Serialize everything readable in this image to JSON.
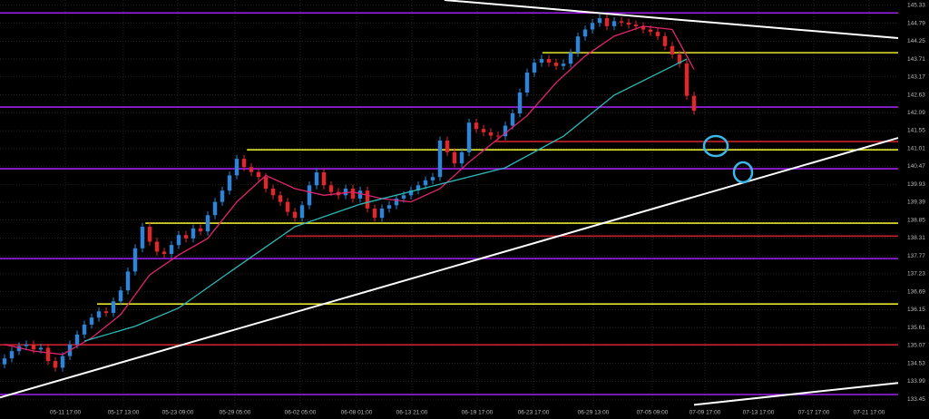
{
  "chart_data": {
    "type": "candlestick",
    "xlim": [
      -0.625,
      123.125
    ],
    "ylim": [
      133.18,
      145.49
    ],
    "grid": true,
    "xticks": [
      {
        "value": 8.375,
        "label": "05-11 17:00"
      },
      {
        "value": 16.375,
        "label": "05-17 13:00"
      },
      {
        "value": 23.875,
        "label": "05-23 09:00"
      },
      {
        "value": 31.75,
        "label": "05-29 05:00"
      },
      {
        "value": 40.75,
        "label": "06-02 05:00"
      },
      {
        "value": 48.5,
        "label": "06-08 01:00"
      },
      {
        "value": 56.125,
        "label": "06-13 21:00"
      },
      {
        "value": 65.125,
        "label": "06-19 17:00"
      },
      {
        "value": 72.875,
        "label": "06-23 17:00"
      },
      {
        "value": 81.125,
        "label": "06-29 13:00"
      },
      {
        "value": 89.25,
        "label": "07-05 09:00"
      },
      {
        "value": 96.5,
        "label": "07-09 17:00"
      },
      {
        "value": 103.875,
        "label": "07-13 17:00"
      },
      {
        "value": 111.5,
        "label": "07-17 17:00"
      },
      {
        "value": 119.125,
        "label": "07-21 17:00"
      }
    ],
    "yticks": [
      145.33,
      144.79,
      144.25,
      143.71,
      143.17,
      142.63,
      142.09,
      141.55,
      141.01,
      140.47,
      139.93,
      139.39,
      138.85,
      138.31,
      137.77,
      137.23,
      136.69,
      136.15,
      135.61,
      135.07,
      134.53,
      133.99,
      133.45
    ],
    "up_color": "#2b86d9",
    "down_color": "#e3262d",
    "open": [
      134.5,
      134.68,
      134.9,
      135.05,
      135.1,
      134.95,
      135.0,
      134.6,
      134.4,
      134.75,
      135.1,
      135.4,
      135.7,
      135.91,
      136.1,
      136.05,
      136.4,
      136.73,
      137.3,
      138.0,
      138.65,
      138.2,
      137.9,
      137.83,
      138.1,
      138.4,
      138.3,
      138.6,
      138.51,
      139.0,
      139.4,
      139.74,
      140.2,
      140.7,
      140.45,
      140.3,
      140.15,
      139.8,
      139.6,
      139.4,
      139.1,
      138.92,
      139.3,
      139.9,
      140.29,
      139.9,
      139.7,
      139.6,
      139.8,
      139.5,
      139.74,
      139.2,
      138.92,
      139.2,
      139.3,
      139.5,
      139.6,
      139.75,
      139.9,
      140.05,
      140.15,
      141.25,
      140.9,
      140.56,
      140.9,
      141.79,
      141.6,
      141.5,
      141.4,
      141.38,
      141.7,
      142.07,
      142.7,
      143.3,
      143.6,
      143.71,
      143.6,
      143.5,
      143.57,
      143.9,
      144.39,
      144.6,
      144.8,
      144.94,
      144.7,
      144.85,
      144.81,
      144.75,
      144.7,
      144.6,
      144.53,
      144.4,
      144.1,
      143.85,
      143.57,
      142.6
    ],
    "high": [
      134.8,
      135.02,
      135.17,
      135.22,
      135.22,
      135.12,
      135.12,
      134.72,
      134.87,
      135.22,
      135.52,
      135.82,
      136.03,
      136.22,
      136.22,
      136.52,
      136.85,
      137.42,
      138.12,
      138.77,
      138.77,
      138.32,
      138.02,
      138.22,
      138.52,
      138.52,
      138.72,
      138.72,
      139.12,
      139.52,
      139.86,
      140.32,
      140.82,
      140.82,
      140.57,
      140.42,
      140.27,
      139.92,
      139.72,
      139.52,
      139.22,
      139.42,
      140.02,
      140.41,
      140.41,
      140.02,
      139.82,
      139.92,
      139.92,
      139.86,
      139.86,
      139.32,
      139.32,
      139.42,
      139.62,
      139.72,
      139.87,
      140.02,
      140.17,
      140.27,
      141.37,
      141.37,
      141.02,
      141.02,
      141.91,
      141.91,
      141.72,
      141.62,
      141.52,
      141.82,
      142.19,
      142.82,
      143.42,
      143.72,
      143.83,
      143.83,
      143.72,
      143.69,
      144.02,
      144.51,
      144.72,
      144.92,
      145.06,
      145.06,
      144.97,
      144.97,
      144.93,
      144.87,
      144.82,
      144.72,
      144.65,
      144.52,
      144.22,
      143.97,
      143.69,
      142.72
    ],
    "low": [
      134.38,
      134.56,
      134.78,
      134.93,
      134.83,
      134.83,
      134.48,
      134.28,
      134.28,
      134.63,
      134.98,
      135.28,
      135.58,
      135.79,
      135.93,
      135.93,
      136.28,
      136.61,
      137.18,
      137.88,
      138.08,
      137.78,
      137.71,
      137.71,
      137.98,
      138.18,
      138.18,
      138.39,
      138.39,
      138.88,
      139.28,
      139.62,
      140.08,
      140.33,
      140.18,
      140.03,
      139.68,
      139.48,
      139.28,
      138.98,
      138.8,
      138.8,
      139.18,
      139.78,
      139.78,
      139.58,
      139.48,
      139.48,
      139.38,
      139.38,
      139.08,
      138.8,
      138.8,
      139.08,
      139.18,
      139.38,
      139.48,
      139.63,
      139.78,
      139.93,
      140.03,
      140.78,
      140.44,
      140.44,
      140.78,
      141.48,
      141.38,
      141.28,
      141.26,
      141.26,
      141.58,
      141.95,
      142.58,
      143.18,
      143.48,
      143.48,
      143.38,
      143.38,
      143.45,
      143.78,
      144.27,
      144.48,
      144.68,
      144.58,
      144.58,
      144.69,
      144.63,
      144.58,
      144.48,
      144.41,
      144.28,
      143.98,
      143.73,
      143.45,
      142.48,
      142.03
    ],
    "close": [
      134.68,
      134.9,
      135.05,
      135.1,
      134.95,
      135.0,
      134.6,
      134.4,
      134.75,
      135.1,
      135.4,
      135.7,
      135.91,
      136.1,
      136.05,
      136.4,
      136.73,
      137.3,
      138.0,
      138.65,
      138.2,
      137.9,
      137.83,
      138.1,
      138.4,
      138.3,
      138.6,
      138.51,
      139.0,
      139.4,
      139.74,
      140.2,
      140.7,
      140.45,
      140.3,
      140.15,
      139.8,
      139.6,
      139.4,
      139.1,
      138.92,
      139.3,
      139.9,
      140.29,
      139.9,
      139.7,
      139.6,
      139.8,
      139.5,
      139.74,
      139.2,
      138.92,
      139.2,
      139.3,
      139.5,
      139.6,
      139.75,
      139.9,
      140.05,
      140.15,
      141.25,
      140.9,
      140.56,
      140.9,
      141.79,
      141.6,
      141.5,
      141.4,
      141.38,
      141.7,
      142.07,
      142.7,
      143.3,
      143.6,
      143.71,
      143.6,
      143.5,
      143.57,
      143.9,
      144.39,
      144.6,
      144.8,
      144.94,
      144.7,
      144.85,
      144.81,
      144.75,
      144.7,
      144.6,
      144.53,
      144.4,
      144.1,
      143.85,
      143.57,
      142.6,
      142.15
    ],
    "series": [
      {
        "color": "#e0246e",
        "x": [
          0,
          4,
          8,
          12,
          16,
          20,
          24,
          28,
          32,
          36,
          40,
          44,
          48,
          52,
          56,
          60,
          64,
          68,
          72,
          76,
          80,
          84,
          88,
          92,
          95
        ],
        "values": [
          135.1,
          134.9,
          134.8,
          135.3,
          136.0,
          137.2,
          137.8,
          138.3,
          139.4,
          140.2,
          139.8,
          139.6,
          139.7,
          139.5,
          139.4,
          139.8,
          140.6,
          141.3,
          142.0,
          143.0,
          143.8,
          144.4,
          144.7,
          144.6,
          143.4
        ]
      },
      {
        "color": "#2fb8b8",
        "x": [
          11,
          18,
          24,
          31,
          40,
          49,
          59,
          69,
          77,
          84,
          94
        ],
        "values": [
          135.2,
          135.65,
          136.2,
          137.28,
          138.65,
          139.33,
          139.88,
          140.43,
          141.38,
          142.62,
          143.71
        ]
      }
    ],
    "levels": [
      {
        "color": "#a020f0",
        "value": 145.1,
        "start": -0.625
      },
      {
        "color": "#a020f0",
        "value": 142.26,
        "start": -0.625
      },
      {
        "color": "#a020f0",
        "value": 140.4,
        "start": -0.625
      },
      {
        "color": "#a020f0",
        "value": 137.69,
        "start": -0.625
      },
      {
        "color": "#a020f0",
        "value": 133.59,
        "start": -0.625
      },
      {
        "color": "#e6e62e",
        "value": 143.9,
        "start": 74.1
      },
      {
        "color": "#e6e62e",
        "value": 140.97,
        "start": 33.4
      },
      {
        "color": "#e6e62e",
        "value": 138.76,
        "start": 19.4
      },
      {
        "color": "#e6e62e",
        "value": 136.32,
        "start": 12.75
      },
      {
        "color": "#c8202a",
        "value": 141.22,
        "start": 67.5
      },
      {
        "color": "#c8202a",
        "value": 138.37,
        "start": 38.8
      },
      {
        "color": "#c8202a",
        "value": 135.09,
        "start": -0.625
      }
    ],
    "trendlines": [
      {
        "color": "#ffffff",
        "x": [
          60.6,
          123.125
        ],
        "values": [
          145.49,
          144.34
        ]
      },
      {
        "color": "#ffffff",
        "x": [
          -0.625,
          123.125
        ],
        "values": [
          133.5,
          141.33
        ]
      },
      {
        "color": "#ffffff",
        "x": [
          95,
          123.125
        ],
        "values": [
          133.28,
          133.94
        ]
      }
    ]
  }
}
